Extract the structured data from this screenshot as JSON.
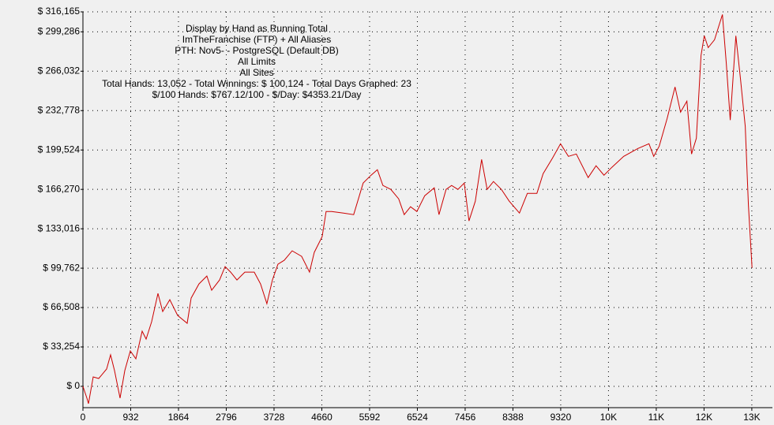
{
  "chart_data": {
    "type": "line",
    "annotations": [
      "Display by Hand as Running Total",
      "ImTheFranchise (FTP) + All Aliases",
      "PTH: Nov5- - PostgreSQL (Default DB)",
      "All Limits",
      "All Sites",
      "Total Hands: 13,052 - Total Winnings: $ 100,124 - Total Days Graphed: 23",
      "$/100 Hands: $767.12/100 - $/Day: $4353.21/Day"
    ],
    "x": [
      0,
      77,
      108,
      200,
      308,
      462,
      539,
      616,
      724,
      816,
      924,
      1032,
      1155,
      1232,
      1340,
      1463,
      1556,
      1695,
      1848,
      2033,
      2110,
      2264,
      2418,
      2511,
      2665,
      2773,
      2881,
      3004,
      3158,
      3342,
      3465,
      3588,
      3696,
      3804,
      3927,
      4081,
      4266,
      4420,
      4512,
      4666,
      4743,
      4851,
      5082,
      5282,
      5467,
      5621,
      5744,
      5852,
      6006,
      6160,
      6268,
      6391,
      6514,
      6668,
      6853,
      6946,
      7084,
      7192,
      7315,
      7438,
      7530,
      7654,
      7777,
      7885,
      8008,
      8162,
      8316,
      8516,
      8670,
      8855,
      8978,
      9163,
      9317,
      9471,
      9625,
      9856,
      10010,
      10164,
      10318,
      10549,
      10826,
      11042,
      11134,
      11242,
      11396,
      11550,
      11658,
      11781,
      11873,
      11966,
      12058,
      12120,
      12197,
      12320,
      12474,
      12551,
      12628,
      12736,
      12828,
      12920,
      12982,
      13052
    ],
    "series": [
      {
        "color": "#cc0000",
        "values": [
          0,
          -9975,
          -14630,
          7980,
          6650,
          14630,
          26600,
          13300,
          -9975,
          13300,
          29925,
          23275,
          46550,
          39900,
          54530,
          78470,
          63175,
          73150,
          59850,
          53200,
          74480,
          86450,
          93100,
          81130,
          89775,
          101080,
          96425,
          89775,
          96425,
          96425,
          86450,
          69825,
          89775,
          103075,
          106400,
          114380,
          109725,
          96425,
          113050,
          126350,
          147630,
          147630,
          146300,
          144970,
          171570,
          178220,
          182875,
          169575,
          166250,
          158270,
          144970,
          151620,
          147630,
          160930,
          167580,
          144970,
          166250,
          169575,
          166250,
          171570,
          139650,
          156275,
          191520,
          166250,
          172900,
          166250,
          156275,
          146300,
          162925,
          162925,
          179550,
          192850,
          204820,
          194180,
          196175,
          176225,
          186200,
          178220,
          184870,
          194180,
          200830,
          204820,
          194180,
          202825,
          226100,
          252700,
          231420,
          240730,
          196175,
          209475,
          279300,
          295930,
          285955,
          292605,
          313880,
          272650,
          224770,
          295930,
          259350,
          219450,
          152950,
          100124
        ]
      }
    ],
    "xlim": [
      0,
      13450
    ],
    "ylim": [
      -18000,
      316165
    ],
    "xticks": [
      0,
      932,
      1864,
      2796,
      3728,
      4660,
      5592,
      6524,
      7456,
      8388,
      9320,
      {
        "value": 10252,
        "label": "10K"
      },
      {
        "value": 11184,
        "label": "11K"
      },
      {
        "value": 12116,
        "label": "12K"
      },
      {
        "value": 13048,
        "label": "13K"
      }
    ],
    "yticks": [
      {
        "value": 0,
        "label": "$ 0"
      },
      {
        "value": 33254,
        "label": "$ 33,254"
      },
      {
        "value": 66508,
        "label": "$ 66,508"
      },
      {
        "value": 99762,
        "label": "$ 99,762"
      },
      {
        "value": 133016,
        "label": "$ 133,016"
      },
      {
        "value": 166270,
        "label": "$ 166,270"
      },
      {
        "value": 199524,
        "label": "$ 199,524"
      },
      {
        "value": 232778,
        "label": "$ 232,778"
      },
      {
        "value": 266032,
        "label": "$ 266,032"
      },
      {
        "value": 299286,
        "label": "$ 299,286"
      },
      {
        "value": 316165,
        "label": "$ 316,165"
      }
    ],
    "grid": true
  }
}
